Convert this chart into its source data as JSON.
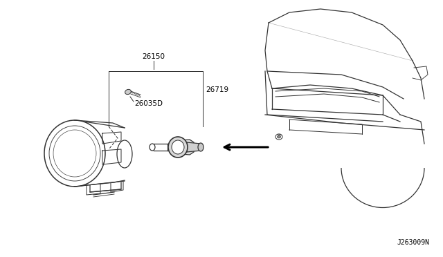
{
  "bg_color": "#ffffff",
  "label_26150": "26150",
  "label_26719": "26719",
  "label_26035D": "26035D",
  "diagram_code": "J263009N",
  "lc": "#333333",
  "tc": "#000000"
}
